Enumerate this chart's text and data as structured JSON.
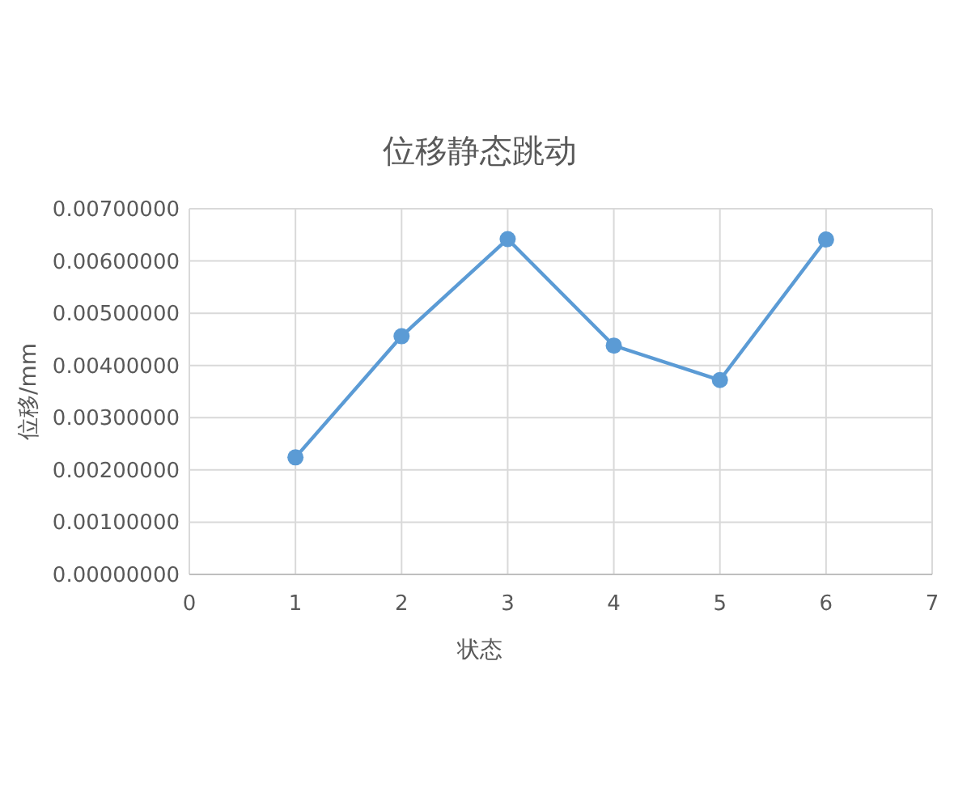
{
  "chart_data": {
    "type": "line",
    "title": "位移静态跳动",
    "xlabel": "状态",
    "ylabel": "位移/mm",
    "x": [
      1,
      2,
      3,
      4,
      5,
      6
    ],
    "series": [
      {
        "color": "#5b9bd5",
        "values": [
          0.00224,
          0.00456,
          0.00642,
          0.00438,
          0.00372,
          0.00641
        ]
      }
    ],
    "xlim": [
      0,
      7
    ],
    "xticks": [
      0,
      1,
      2,
      3,
      4,
      5,
      6,
      7
    ],
    "ylim": [
      0,
      0.007
    ],
    "yticks": [
      {
        "value": 0,
        "label": "0.00000000"
      },
      {
        "value": 0.001,
        "label": "0.00100000"
      },
      {
        "value": 0.002,
        "label": "0.00200000"
      },
      {
        "value": 0.003,
        "label": "0.00300000"
      },
      {
        "value": 0.004,
        "label": "0.00400000"
      },
      {
        "value": 0.005,
        "label": "0.00500000"
      },
      {
        "value": 0.006,
        "label": "0.00600000"
      },
      {
        "value": 0.007,
        "label": "0.00700000"
      }
    ],
    "grid": true,
    "marker": "circle",
    "line_style": "solid"
  }
}
